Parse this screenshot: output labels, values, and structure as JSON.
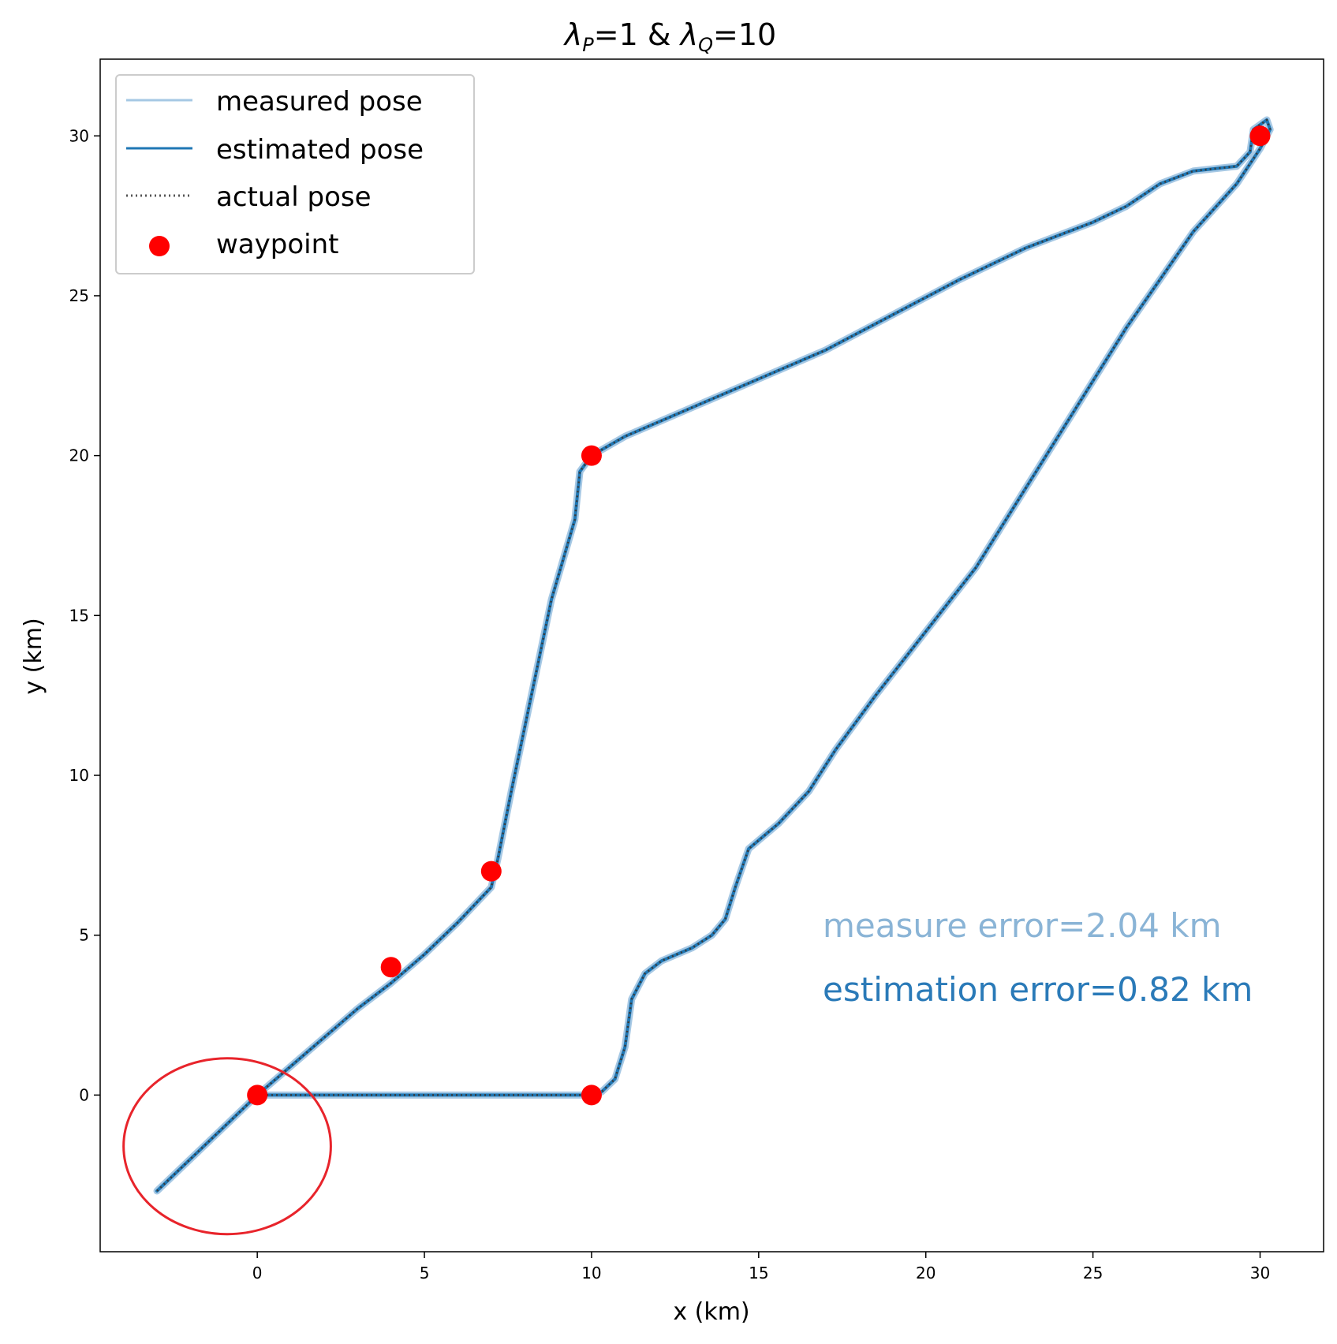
{
  "chart_data": {
    "type": "line",
    "title": {
      "lambda": "λ",
      "sub_p": "P",
      "sub_q": "Q",
      "part1": "=1 & ",
      "part2": "=10"
    },
    "xlabel": "x (km)",
    "ylabel": "y (km)",
    "xlim": [
      -4.7,
      31.9
    ],
    "ylim": [
      -4.9,
      32.4
    ],
    "xticks": [
      0,
      5,
      10,
      15,
      20,
      25,
      30
    ],
    "yticks": [
      0,
      5,
      10,
      15,
      20,
      25,
      30
    ],
    "legend": {
      "placement": "top-left",
      "entries": [
        {
          "label": "measured pose",
          "style": "line",
          "color": "#a6c8e4"
        },
        {
          "label": "estimated pose",
          "style": "line",
          "color": "#1f77b4"
        },
        {
          "label": "actual pose",
          "style": "dotted",
          "color": "#555555"
        },
        {
          "label": "waypoint",
          "style": "marker",
          "color": "#ff0000"
        }
      ]
    },
    "series": [
      {
        "name": "actual pose",
        "points": [
          [
            -3,
            -3
          ],
          [
            0,
            0
          ],
          [
            3,
            2.7
          ],
          [
            4,
            3.5
          ],
          [
            5,
            4.4
          ],
          [
            6,
            5.4
          ],
          [
            7,
            6.5
          ],
          [
            7.2,
            7.4
          ],
          [
            7.6,
            9.5
          ],
          [
            8.3,
            13
          ],
          [
            8.8,
            15.5
          ],
          [
            9.5,
            18
          ],
          [
            9.65,
            19.5
          ],
          [
            10,
            20
          ],
          [
            11,
            20.6
          ],
          [
            13,
            21.5
          ],
          [
            15,
            22.4
          ],
          [
            17,
            23.3
          ],
          [
            19,
            24.4
          ],
          [
            21,
            25.5
          ],
          [
            23,
            26.5
          ],
          [
            25,
            27.3
          ],
          [
            26,
            27.8
          ],
          [
            27,
            28.5
          ],
          [
            28,
            28.9
          ],
          [
            29.3,
            29.05
          ],
          [
            29.7,
            29.5
          ],
          [
            29.8,
            30.2
          ],
          [
            30.2,
            30.5
          ],
          [
            30.3,
            30.2
          ],
          [
            30,
            29.6
          ],
          [
            29.3,
            28.5
          ],
          [
            28,
            27
          ],
          [
            27,
            25.5
          ],
          [
            26,
            24
          ],
          [
            24.5,
            21.5
          ],
          [
            23,
            19
          ],
          [
            21.5,
            16.5
          ],
          [
            20,
            14.5
          ],
          [
            18.5,
            12.5
          ],
          [
            17.3,
            10.8
          ],
          [
            16.5,
            9.5
          ],
          [
            15.6,
            8.5
          ],
          [
            14.7,
            7.7
          ],
          [
            14.3,
            6.5
          ],
          [
            14,
            5.5
          ],
          [
            13.6,
            5
          ],
          [
            13,
            4.6
          ],
          [
            12.1,
            4.2
          ],
          [
            11.6,
            3.8
          ],
          [
            11.2,
            3
          ],
          [
            11,
            1.5
          ],
          [
            10.7,
            0.5
          ],
          [
            10.3,
            0.1
          ],
          [
            10,
            0
          ],
          [
            5,
            0
          ],
          [
            0,
            0
          ]
        ]
      }
    ],
    "waypoints": [
      [
        0,
        0
      ],
      [
        4,
        4
      ],
      [
        7,
        7
      ],
      [
        10,
        20
      ],
      [
        30,
        30
      ],
      [
        10,
        0
      ]
    ],
    "annotations": [
      {
        "text": "measure error=2.04 km",
        "color": "#8ab4d6"
      },
      {
        "text": "estimation error=0.82 km",
        "color": "#2a7ab8"
      }
    ],
    "highlight": {
      "shape": "ellipse",
      "color": "#e8242b",
      "center": [
        -0.9,
        -1.6
      ],
      "radius_data": [
        3.1,
        2.75
      ]
    }
  }
}
